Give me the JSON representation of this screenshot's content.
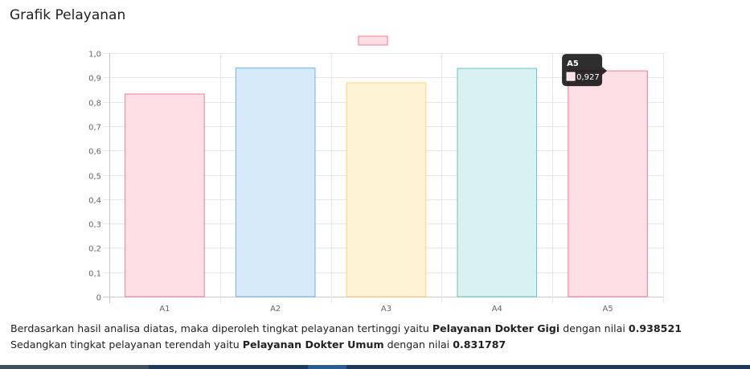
{
  "page": {
    "title": "Grafik Pelayanan",
    "summary_line1_prefix": "Berdasarkan hasil analisa diatas, maka diperoleh tingkat pelayanan tertinggi yaitu ",
    "summary_line1_highlight": "Pelayanan Dokter Gigi",
    "summary_line1_mid": " dengan nilai ",
    "summary_line1_value": "0.938521",
    "summary_line2_prefix": "Sedangkan tingkat pelayanan terendah yaitu ",
    "summary_line2_highlight": "Pelayanan Dokter Umum",
    "summary_line2_mid": " dengan nilai ",
    "summary_line2_value": "0.831787"
  },
  "chart_data": {
    "type": "bar",
    "categories": [
      "A1",
      "A2",
      "A3",
      "A4",
      "A5"
    ],
    "values": [
      0.831787,
      0.938521,
      0.878,
      0.937,
      0.927
    ],
    "ylim": [
      0,
      1
    ],
    "yticks": [
      "0",
      "0,1",
      "0,2",
      "0,3",
      "0,4",
      "0,5",
      "0,6",
      "0,7",
      "0,8",
      "0,9",
      "1,0"
    ],
    "grid": true,
    "legend": "top-center",
    "bar_fills": [
      "#ffdfe6",
      "#d6eafa",
      "#fff3d6",
      "#d8f1f2",
      "#ffdfe6"
    ],
    "bar_strokes": [
      "#f17c95",
      "#6cb4ec",
      "#ffd27a",
      "#66c7c7",
      "#f17c95"
    ],
    "tooltip": {
      "category": "A5",
      "value_label": "0,927"
    }
  }
}
